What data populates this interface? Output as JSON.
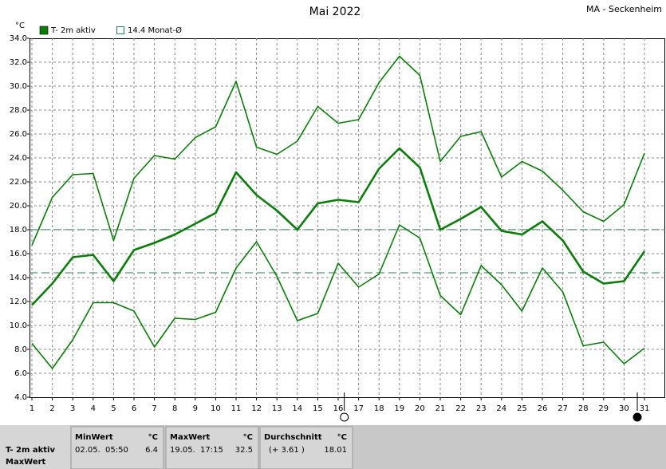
{
  "chart_data": {
    "type": "line",
    "title": "Mai 2022",
    "station": "MA - Seckenheim",
    "unit": "°C",
    "categories": [
      "1",
      "2",
      "3",
      "4",
      "5",
      "6",
      "7",
      "8",
      "9",
      "10",
      "11",
      "12",
      "13",
      "14",
      "15",
      "16",
      "17",
      "18",
      "19",
      "20",
      "21",
      "22",
      "23",
      "24",
      "25",
      "26",
      "27",
      "28",
      "29",
      "30",
      "31"
    ],
    "series": [
      {
        "name": "T- 2m aktiv",
        "color": "#0a7d0a",
        "values": [
          11.7,
          13.5,
          15.7,
          15.9,
          13.7,
          16.3,
          16.9,
          17.6,
          18.5,
          19.4,
          22.8,
          20.9,
          19.6,
          18.0,
          20.2,
          20.5,
          20.3,
          23.1,
          24.8,
          23.2,
          18.0,
          18.9,
          19.9,
          17.9,
          17.6,
          18.7,
          17.1,
          14.5,
          13.5,
          13.7,
          16.2
        ],
        "max": [
          16.7,
          20.7,
          22.6,
          22.7,
          17.1,
          22.3,
          24.2,
          23.9,
          25.7,
          26.6,
          30.4,
          24.9,
          24.3,
          25.4,
          28.3,
          26.9,
          27.2,
          30.3,
          32.5,
          30.9,
          23.7,
          25.8,
          26.2,
          22.4,
          23.7,
          22.9,
          21.3,
          19.5,
          18.7,
          20.1,
          24.4
        ],
        "min": [
          8.5,
          6.4,
          8.8,
          11.9,
          11.9,
          11.2,
          8.2,
          10.6,
          10.5,
          11.1,
          14.8,
          17.0,
          14.1,
          10.4,
          11.0,
          15.2,
          13.2,
          14.3,
          18.4,
          17.3,
          12.5,
          10.9,
          15.0,
          13.4,
          11.2,
          14.8,
          12.8,
          8.3,
          8.6,
          6.8,
          8.1
        ]
      }
    ],
    "reference": {
      "label": "14.4 Monat-Ø",
      "value": 14.4,
      "color": "#2e7d5a"
    },
    "moon": [
      {
        "day": 16.3,
        "phase": "full"
      },
      {
        "day": 30.65,
        "phase": "new"
      }
    ],
    "ylim": [
      4,
      34
    ],
    "yticks": [
      {
        "value": 4,
        "label": "4.0"
      },
      {
        "value": 6,
        "label": "6.0"
      },
      {
        "value": 8,
        "label": "8.0"
      },
      {
        "value": 10,
        "label": "10.0"
      },
      {
        "value": 12,
        "label": "12.0"
      },
      {
        "value": 14,
        "label": "14.0"
      },
      {
        "value": 16,
        "label": "16.0"
      },
      {
        "value": 18,
        "label": "18.0"
      },
      {
        "value": 20,
        "label": "20.0"
      },
      {
        "value": 22,
        "label": "22.0"
      },
      {
        "value": 24,
        "label": "24.0"
      },
      {
        "value": 26,
        "label": "26.0"
      },
      {
        "value": 28,
        "label": "28.0"
      },
      {
        "value": 30,
        "label": "30.0"
      },
      {
        "value": 32,
        "label": "32.0"
      },
      {
        "value": 34,
        "label": "34.0"
      }
    ],
    "grid": true,
    "stats": {
      "row_label": "T- 2m aktiv",
      "row_label2": "MaxWert",
      "columns": [
        {
          "title": "MinWert",
          "unit": "°C",
          "date": "02.05.",
          "time": "05:50",
          "value": 6.4
        },
        {
          "title": "MaxWert",
          "unit": "°C",
          "date": "19.05.",
          "time": "17:15",
          "value": 32.5
        },
        {
          "title": "Durchschnitt",
          "unit": "°C",
          "note": "(+ 3.61 )",
          "value": 18.01
        }
      ]
    }
  }
}
